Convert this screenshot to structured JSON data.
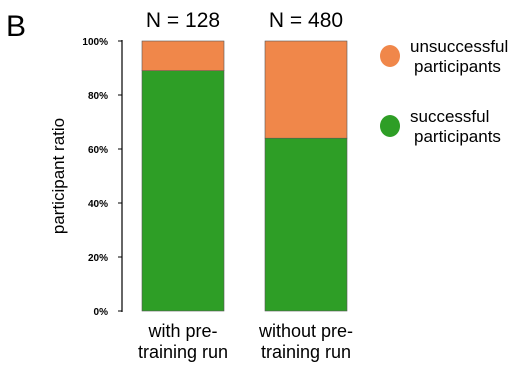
{
  "panel_label": "B",
  "chart_data": {
    "type": "bar",
    "stacked": true,
    "categories": [
      [
        "with pre-",
        "training run"
      ],
      [
        "without pre-",
        "training run"
      ]
    ],
    "annotations": [
      "N = 128",
      "N = 480"
    ],
    "series": [
      {
        "name": "successful participants",
        "name_lines": [
          "successful",
          "participants"
        ],
        "color": "#2e9e26",
        "values": [
          0.89,
          0.64
        ]
      },
      {
        "name": "unsuccessful participants",
        "name_lines": [
          "unsuccessful",
          "participants"
        ],
        "color": "#f0874a",
        "values": [
          0.11,
          0.36
        ]
      }
    ],
    "ylabel": "participant ratio",
    "yticks": [
      "0%",
      "20%",
      "40%",
      "60%",
      "80%",
      "100%"
    ],
    "ylim": [
      0,
      1
    ],
    "grid": false,
    "legend": "right"
  }
}
